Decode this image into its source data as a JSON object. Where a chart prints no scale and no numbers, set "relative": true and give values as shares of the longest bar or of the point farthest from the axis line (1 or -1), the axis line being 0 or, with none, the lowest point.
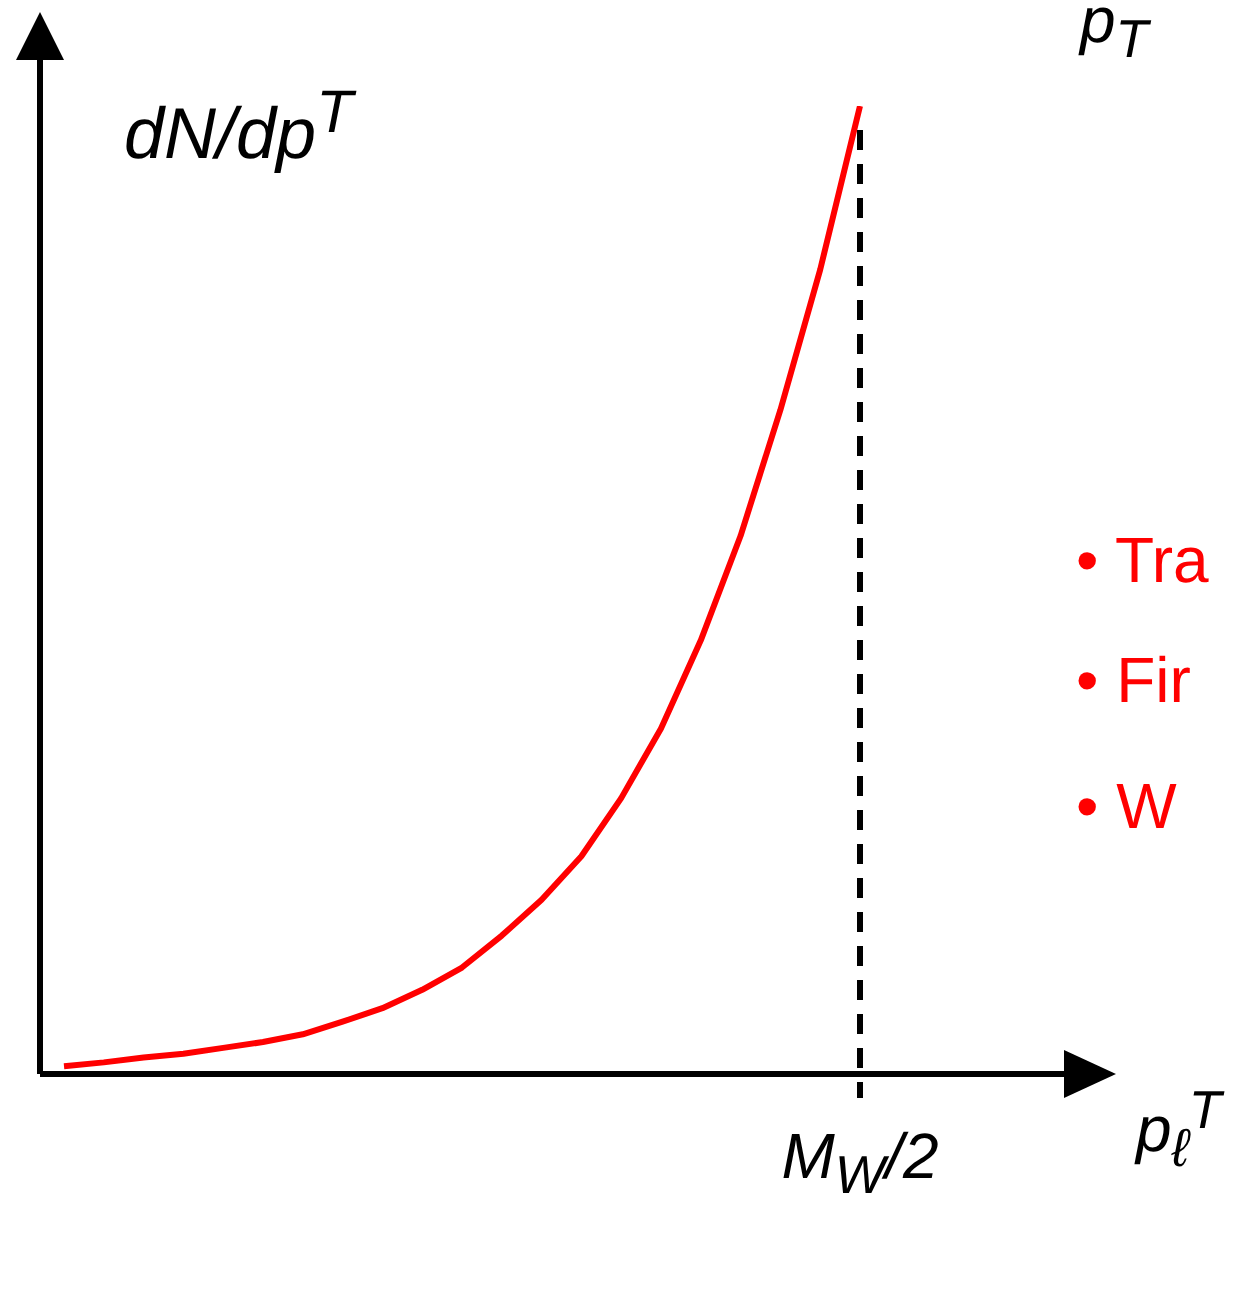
{
  "chart_data": {
    "type": "line",
    "relative": true,
    "xlabel": "p$_{ℓ}$$^{T}$",
    "ylabel": "dN/dp$^{T}$",
    "categories": [
      null,
      null,
      null,
      null,
      null,
      null,
      null,
      null,
      null,
      null,
      null,
      null,
      null,
      null,
      null,
      null,
      null,
      null,
      null,
      null,
      null
    ],
    "series": [
      {
        "color": "#ff0000",
        "values": [
          0.008,
          0.012,
          0.017,
          0.021,
          0.027,
          0.033,
          0.041,
          0.054,
          0.068,
          0.087,
          0.11,
          0.143,
          0.18,
          0.225,
          0.285,
          0.357,
          0.448,
          0.556,
          0.686,
          0.831,
          1
        ]
      }
    ],
    "ref_lines": [
      {
        "axis": "x",
        "label": "M$_{W}$/2",
        "line_style": "dashed",
        "color": "#000000"
      }
    ],
    "annotations": [
      "p$_{T}$",
      "• Tra",
      "• Fir",
      "• W"
    ]
  }
}
